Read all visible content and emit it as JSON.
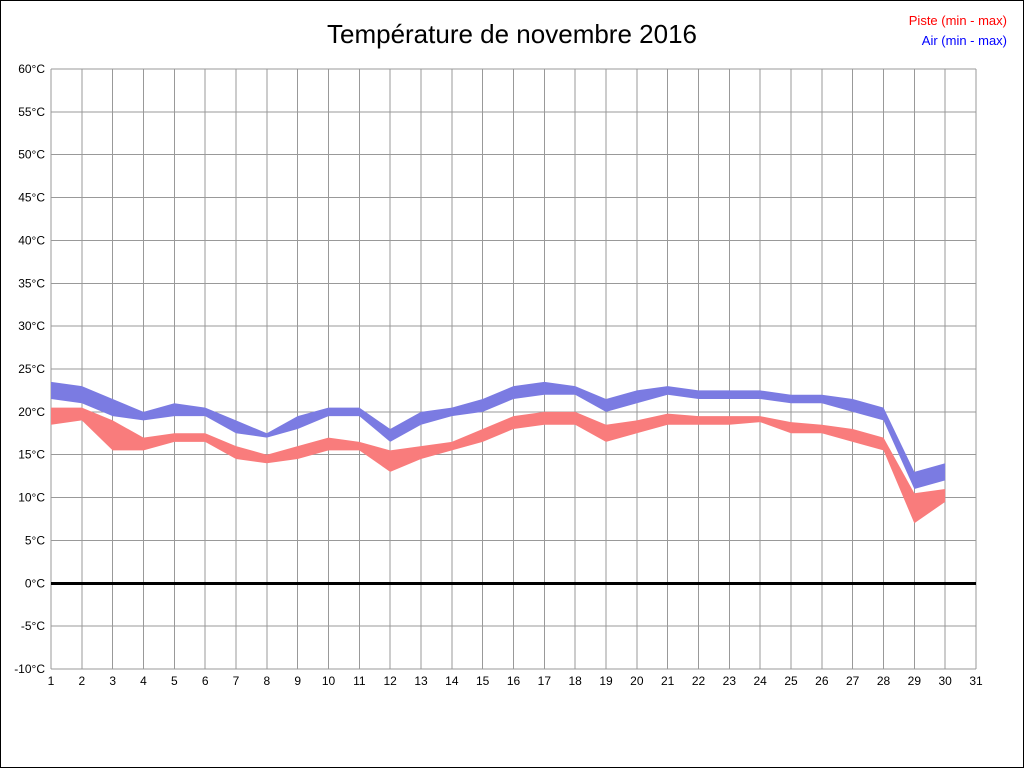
{
  "title": "Température de novembre 2016",
  "legend": {
    "piste_label": "Piste (min - max)",
    "air_label": "Air (min - max)",
    "piste_color": "#ff0000",
    "air_color": "#0000ff"
  },
  "chart_data": {
    "type": "area",
    "title": "Température de novembre 2016",
    "xlabel": "",
    "ylabel": "",
    "xlim": [
      1,
      31
    ],
    "ylim": [
      -10,
      60
    ],
    "grid": true,
    "grid_color": "#999999",
    "legend_position": "top-right",
    "zero_line": {
      "v": 0,
      "color": "#000000",
      "width": 3
    },
    "x": [
      1,
      2,
      3,
      4,
      5,
      6,
      7,
      8,
      9,
      10,
      11,
      12,
      13,
      14,
      15,
      16,
      17,
      18,
      19,
      20,
      21,
      22,
      23,
      24,
      25,
      26,
      27,
      28,
      29,
      30
    ],
    "series": [
      {
        "name": "Piste (min - max)",
        "band_color": "#f97c7c",
        "min": [
          18.5,
          19,
          15.5,
          15.5,
          16.5,
          16.5,
          14.5,
          14,
          14.5,
          15.5,
          15.5,
          13,
          14.5,
          15.5,
          16.5,
          18,
          18.5,
          18.5,
          16.5,
          17.5,
          18.5,
          18.5,
          18.5,
          18.8,
          17.5,
          17.5,
          16.5,
          15.5,
          7,
          9.5
        ],
        "max": [
          20.5,
          20.5,
          19,
          17,
          17.5,
          17.5,
          16,
          15,
          16,
          17,
          16.5,
          15.5,
          16,
          16.5,
          18,
          19.5,
          20,
          20,
          18.5,
          19,
          19.8,
          19.5,
          19.5,
          19.5,
          18.8,
          18.5,
          18,
          17,
          10.5,
          11
        ]
      },
      {
        "name": "Air (min - max)",
        "band_color": "#7b7be2",
        "min": [
          21.5,
          21,
          19.5,
          19,
          19.5,
          19.5,
          17.5,
          17,
          18,
          19.5,
          19.5,
          16.5,
          18.5,
          19.5,
          20,
          21.5,
          22,
          22,
          20,
          21,
          22,
          21.5,
          21.5,
          21.5,
          21,
          21,
          20,
          19,
          11,
          12
        ],
        "max": [
          23.5,
          23,
          21.5,
          20,
          21,
          20.5,
          19,
          17.5,
          19.5,
          20.5,
          20.5,
          18,
          20,
          20.5,
          21.5,
          23,
          23.5,
          23,
          21.5,
          22.5,
          23,
          22.5,
          22.5,
          22.5,
          22,
          22,
          21.5,
          20.5,
          13,
          14
        ]
      }
    ],
    "y_ticks": [
      {
        "v": 60,
        "label": "60°C"
      },
      {
        "v": 55,
        "label": "55°C"
      },
      {
        "v": 50,
        "label": "50°C"
      },
      {
        "v": 45,
        "label": "45°C"
      },
      {
        "v": 40,
        "label": "40°C"
      },
      {
        "v": 35,
        "label": "35°C"
      },
      {
        "v": 30,
        "label": "30°C"
      },
      {
        "v": 25,
        "label": "25°C"
      },
      {
        "v": 20,
        "label": "20°C"
      },
      {
        "v": 15,
        "label": "15°C"
      },
      {
        "v": 10,
        "label": "10°C"
      },
      {
        "v": 5,
        "label": "5°C"
      },
      {
        "v": 0,
        "label": "0°C"
      },
      {
        "v": -5,
        "label": "-5°C"
      },
      {
        "v": -10,
        "label": "-10°C"
      }
    ],
    "x_ticks": [
      {
        "v": 1,
        "label": "1"
      },
      {
        "v": 2,
        "label": "2"
      },
      {
        "v": 3,
        "label": "3"
      },
      {
        "v": 4,
        "label": "4"
      },
      {
        "v": 5,
        "label": "5"
      },
      {
        "v": 6,
        "label": "6"
      },
      {
        "v": 7,
        "label": "7"
      },
      {
        "v": 8,
        "label": "8"
      },
      {
        "v": 9,
        "label": "9"
      },
      {
        "v": 10,
        "label": "10"
      },
      {
        "v": 11,
        "label": "11"
      },
      {
        "v": 12,
        "label": "12"
      },
      {
        "v": 13,
        "label": "13"
      },
      {
        "v": 14,
        "label": "14"
      },
      {
        "v": 15,
        "label": "15"
      },
      {
        "v": 16,
        "label": "16"
      },
      {
        "v": 17,
        "label": "17"
      },
      {
        "v": 18,
        "label": "18"
      },
      {
        "v": 19,
        "label": "19"
      },
      {
        "v": 20,
        "label": "20"
      },
      {
        "v": 21,
        "label": "21"
      },
      {
        "v": 22,
        "label": "22"
      },
      {
        "v": 23,
        "label": "23"
      },
      {
        "v": 24,
        "label": "24"
      },
      {
        "v": 25,
        "label": "25"
      },
      {
        "v": 26,
        "label": "26"
      },
      {
        "v": 27,
        "label": "27"
      },
      {
        "v": 28,
        "label": "28"
      },
      {
        "v": 29,
        "label": "29"
      },
      {
        "v": 30,
        "label": "30"
      },
      {
        "v": 31,
        "label": "31"
      }
    ]
  }
}
